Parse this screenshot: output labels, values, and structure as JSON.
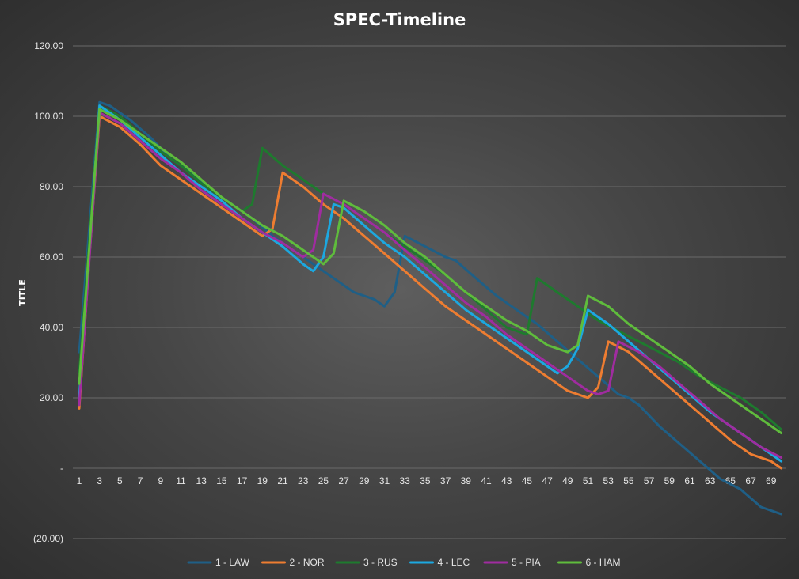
{
  "chart_data": {
    "type": "line",
    "title": "SPEC-Timeline",
    "xlabel": "",
    "ylabel": "TITLE",
    "ylim": [
      -20,
      120
    ],
    "y_ticks": [
      -20,
      0,
      20,
      40,
      60,
      80,
      100,
      120
    ],
    "y_tick_labels": [
      "(20.00)",
      "-",
      "20.00",
      "40.00",
      "60.00",
      "80.00",
      "100.00",
      "120.00"
    ],
    "x_tick_labels": [
      "1",
      "3",
      "5",
      "7",
      "9",
      "11",
      "13",
      "15",
      "17",
      "19",
      "21",
      "23",
      "25",
      "27",
      "29",
      "31",
      "33",
      "35",
      "37",
      "39",
      "41",
      "43",
      "45",
      "47",
      "49",
      "51",
      "53",
      "55",
      "57",
      "59",
      "61",
      "63",
      "65",
      "67",
      "69"
    ],
    "grid": true,
    "legend_position": "bottom",
    "series": [
      {
        "name": "1 - LAW",
        "color": "#1f5f86",
        "x": [
          1,
          3,
          4,
          6,
          8,
          10,
          12,
          14,
          16,
          18,
          20,
          22,
          24,
          26,
          28,
          30,
          31,
          32,
          33,
          35,
          37,
          38,
          40,
          42,
          44,
          46,
          48,
          50,
          52,
          54,
          55,
          56,
          58,
          60,
          62,
          64,
          66,
          68,
          70
        ],
        "y": [
          33,
          104,
          103,
          99,
          94,
          88,
          84,
          79,
          75,
          71,
          66,
          62,
          58,
          54,
          50,
          48,
          46,
          50,
          66,
          63,
          60,
          59,
          54,
          49,
          45,
          41,
          36,
          31,
          26,
          21,
          20,
          18,
          12,
          7,
          2,
          -3,
          -6,
          -11,
          -13
        ]
      },
      {
        "name": "2 - NOR",
        "color": "#ee7d31",
        "x": [
          1,
          2,
          3,
          5,
          7,
          9,
          11,
          13,
          15,
          17,
          19,
          20,
          21,
          23,
          25,
          27,
          29,
          31,
          33,
          35,
          37,
          39,
          41,
          43,
          45,
          47,
          49,
          51,
          52,
          53,
          55,
          57,
          59,
          61,
          63,
          65,
          67,
          69,
          70
        ],
        "y": [
          17,
          60,
          100,
          97,
          92,
          86,
          82,
          78,
          74,
          70,
          66,
          68,
          84,
          80,
          75,
          71,
          66,
          61,
          56,
          51,
          46,
          42,
          38,
          34,
          30,
          26,
          22,
          20,
          23,
          36,
          33,
          28,
          23,
          18,
          13,
          8,
          4,
          2,
          0
        ]
      },
      {
        "name": "3 - RUS",
        "color": "#1e7a2e",
        "x": [
          1,
          3,
          5,
          7,
          9,
          11,
          13,
          15,
          17,
          18,
          19,
          21,
          23,
          25,
          27,
          29,
          31,
          33,
          35,
          37,
          39,
          41,
          43,
          45,
          46,
          48,
          50,
          52,
          54,
          56,
          58,
          60,
          62,
          64,
          66,
          68,
          70
        ],
        "y": [
          27,
          103,
          100,
          95,
          90,
          86,
          81,
          77,
          73,
          75,
          91,
          86,
          82,
          78,
          75,
          71,
          67,
          63,
          59,
          55,
          50,
          45,
          40,
          38,
          54,
          50,
          46,
          42,
          39,
          36,
          33,
          30,
          26,
          23,
          20,
          16,
          11
        ]
      },
      {
        "name": "4 - LEC",
        "color": "#1ca8e0",
        "x": [
          1,
          3,
          5,
          7,
          9,
          11,
          13,
          15,
          17,
          19,
          21,
          23,
          24,
          25,
          26,
          27,
          29,
          31,
          33,
          35,
          37,
          39,
          41,
          43,
          45,
          47,
          48,
          49,
          50,
          51,
          53,
          55,
          57,
          59,
          61,
          63,
          65,
          67,
          69,
          70
        ],
        "y": [
          20,
          103,
          99,
          94,
          89,
          84,
          80,
          76,
          71,
          67,
          63,
          58,
          56,
          60,
          75,
          74,
          69,
          64,
          60,
          55,
          50,
          45,
          41,
          37,
          33,
          29,
          27,
          29,
          34,
          45,
          41,
          36,
          31,
          26,
          21,
          16,
          12,
          8,
          4,
          2
        ]
      },
      {
        "name": "5 - PIA",
        "color": "#a02ca0",
        "x": [
          1,
          3,
          5,
          7,
          9,
          11,
          13,
          15,
          17,
          19,
          21,
          23,
          24,
          25,
          27,
          29,
          31,
          33,
          35,
          37,
          39,
          41,
          43,
          45,
          47,
          49,
          51,
          52,
          53,
          54,
          56,
          58,
          60,
          62,
          64,
          66,
          68,
          70
        ],
        "y": [
          18,
          101,
          98,
          93,
          88,
          84,
          79,
          75,
          71,
          67,
          64,
          60,
          62,
          78,
          75,
          71,
          67,
          62,
          57,
          52,
          47,
          43,
          38,
          34,
          30,
          26,
          22,
          21,
          22,
          36,
          33,
          29,
          24,
          19,
          14,
          10,
          6,
          3
        ]
      },
      {
        "name": "6 - HAM",
        "color": "#5fbc3c",
        "x": [
          1,
          3,
          5,
          7,
          9,
          11,
          13,
          15,
          17,
          19,
          21,
          23,
          25,
          26,
          27,
          29,
          31,
          33,
          35,
          37,
          39,
          41,
          43,
          45,
          47,
          49,
          50,
          51,
          53,
          55,
          57,
          59,
          61,
          63,
          65,
          67,
          69,
          70
        ],
        "y": [
          24,
          102,
          99,
          95,
          91,
          87,
          82,
          77,
          73,
          69,
          66,
          62,
          58,
          61,
          76,
          73,
          69,
          64,
          60,
          55,
          50,
          46,
          42,
          39,
          35,
          33,
          35,
          49,
          46,
          41,
          37,
          33,
          29,
          24,
          20,
          16,
          12,
          10
        ]
      }
    ]
  }
}
